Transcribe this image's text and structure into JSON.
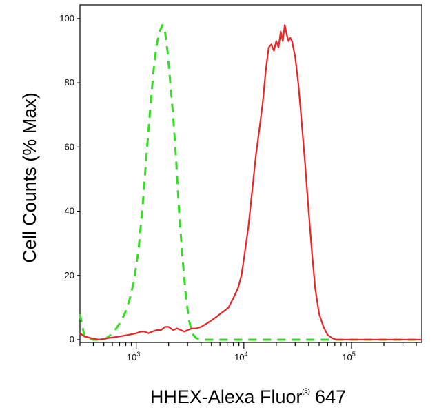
{
  "chart_data": {
    "type": "line",
    "title": "",
    "xlabel": "HHEX-Alexa Fluor",
    "xlabel_superscript": "®",
    "xlabel_suffix": " 647",
    "ylabel": "Cell Counts (% Max)",
    "x_scale": "log",
    "xlim": [
      300,
      450000
    ],
    "ylim": [
      0,
      100
    ],
    "y_ticks": [
      0,
      20,
      40,
      60,
      80,
      100
    ],
    "y_tick_labels": [
      "0",
      "20",
      "40",
      "60",
      "80",
      "100"
    ],
    "x_ticks": [
      {
        "value": 1000,
        "base": "10",
        "exp": "3"
      },
      {
        "value": 10000,
        "base": "10",
        "exp": "4"
      },
      {
        "value": 100000,
        "base": "10",
        "exp": "5"
      }
    ],
    "grid": false,
    "legend": "none",
    "series": [
      {
        "style": "dashed",
        "color": "#33dd22",
        "x": [
          300,
          330,
          360,
          400,
          450,
          500,
          560,
          620,
          700,
          780,
          860,
          950,
          1050,
          1150,
          1250,
          1350,
          1450,
          1550,
          1650,
          1750,
          1850,
          1950,
          2050,
          2200,
          2350,
          2500,
          2700,
          2900,
          3100,
          3300,
          3600,
          4000,
          5000,
          7000,
          10000,
          20000,
          50000,
          100000,
          200000,
          450000
        ],
        "y": [
          8,
          1,
          0.5,
          0,
          0,
          0,
          1,
          2.5,
          5,
          8,
          12,
          18,
          28,
          42,
          58,
          72,
          84,
          92,
          96,
          98,
          96,
          90,
          82,
          70,
          56,
          40,
          25,
          13,
          6,
          2,
          0.5,
          0,
          0,
          0,
          0,
          0,
          0,
          0,
          0,
          0
        ]
      },
      {
        "style": "solid",
        "color": "#ee2222",
        "x": [
          300,
          330,
          380,
          450,
          550,
          700,
          850,
          1000,
          1100,
          1200,
          1300,
          1400,
          1550,
          1700,
          1850,
          2000,
          2200,
          2400,
          2600,
          2800,
          3000,
          3300,
          3600,
          4000,
          4500,
          5000,
          5500,
          6000,
          6600,
          7200,
          8000,
          8800,
          9500,
          10000,
          11000,
          12000,
          13000,
          14000,
          15000,
          16000,
          17000,
          18000,
          19000,
          20000,
          21000,
          22000,
          23000,
          24000,
          25000,
          26000,
          27000,
          28000,
          30000,
          32000,
          34000,
          37000,
          40000,
          43000,
          46000,
          50000,
          55000,
          60000,
          66000,
          72000,
          80000,
          100000,
          150000,
          200000,
          300000,
          450000
        ],
        "y": [
          2,
          1,
          0.5,
          0,
          0.5,
          1,
          1.5,
          2,
          2.5,
          2.5,
          2,
          2.5,
          3,
          3,
          4,
          4,
          3,
          3.5,
          3,
          2.5,
          3,
          3.5,
          3.5,
          4,
          5,
          6,
          7,
          8,
          9,
          10,
          13,
          16,
          20,
          25,
          35,
          47,
          58,
          66,
          74,
          84,
          91,
          92,
          90,
          93,
          91,
          96,
          93,
          98,
          95,
          93,
          94,
          93,
          88,
          80,
          70,
          55,
          40,
          27,
          16,
          8,
          4,
          1.5,
          0.5,
          0,
          0,
          0,
          0,
          0,
          0,
          0
        ]
      }
    ]
  }
}
